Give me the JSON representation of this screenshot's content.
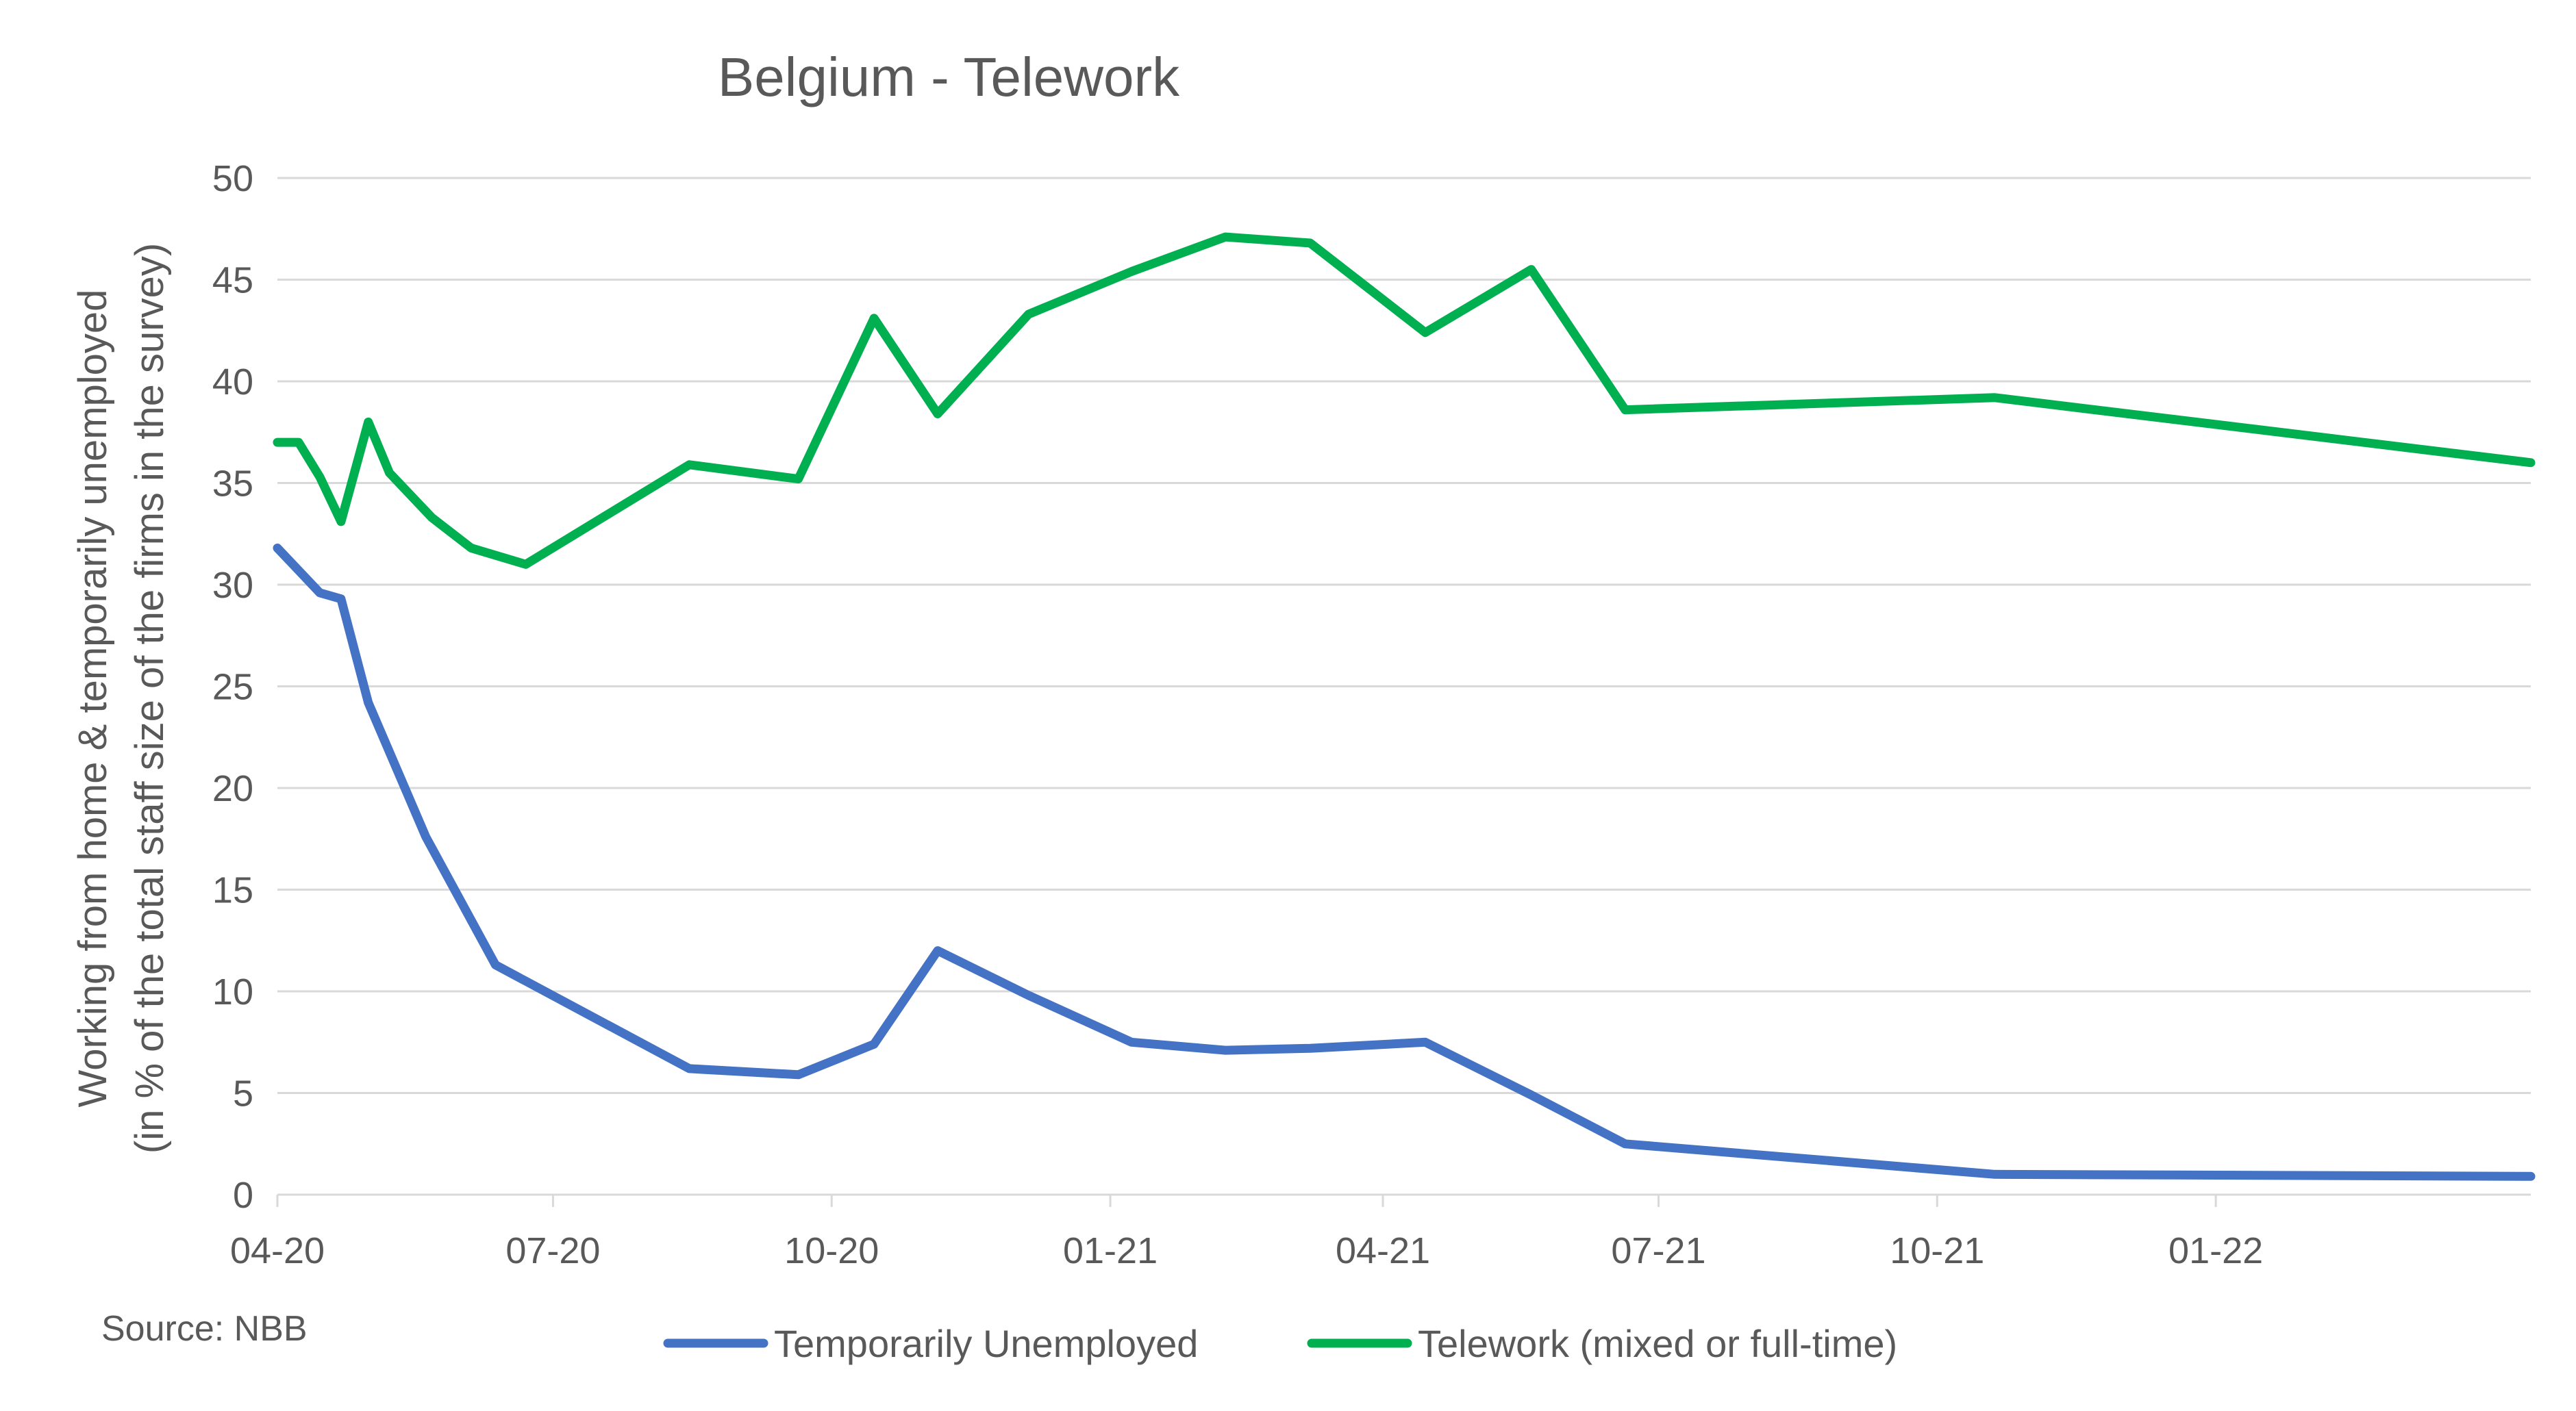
{
  "chart_data": {
    "type": "line",
    "title": "Belgium - Telework",
    "ylabel_line1": "Working from home & temporarily unemployed",
    "ylabel_line2": "(in % of the total staff size of the firms in the survey)",
    "source": "Source: NBB",
    "ylim": [
      0,
      50
    ],
    "y_ticks": [
      "0",
      "5",
      "10",
      "15",
      "20",
      "25",
      "30",
      "35",
      "40",
      "45",
      "50"
    ],
    "x_range": [
      "2020-04-01",
      "2022-04-15"
    ],
    "x_ticks": [
      {
        "date": "2020-04-01",
        "label": "04-20"
      },
      {
        "date": "2020-07-01",
        "label": "07-20"
      },
      {
        "date": "2020-10-01",
        "label": "10-20"
      },
      {
        "date": "2021-01-01",
        "label": "01-21"
      },
      {
        "date": "2021-04-01",
        "label": "04-21"
      },
      {
        "date": "2021-07-01",
        "label": "07-21"
      },
      {
        "date": "2021-10-01",
        "label": "10-21"
      },
      {
        "date": "2022-01-01",
        "label": "01-22"
      }
    ],
    "grid": true,
    "legend_position": "bottom",
    "series": [
      {
        "name": "Temporarily Unemployed",
        "color": "#4472c4",
        "points": [
          [
            "2020-04-01",
            31.8
          ],
          [
            "2020-04-08",
            30.7
          ],
          [
            "2020-04-15",
            29.6
          ],
          [
            "2020-04-22",
            29.3
          ],
          [
            "2020-05-01",
            24.2
          ],
          [
            "2020-05-20",
            17.6
          ],
          [
            "2020-06-12",
            11.3
          ],
          [
            "2020-08-15",
            6.2
          ],
          [
            "2020-09-20",
            5.9
          ],
          [
            "2020-10-15",
            7.4
          ],
          [
            "2020-11-05",
            12.0
          ],
          [
            "2020-12-05",
            9.8
          ],
          [
            "2021-01-08",
            7.5
          ],
          [
            "2021-02-08",
            7.1
          ],
          [
            "2021-03-08",
            7.2
          ],
          [
            "2021-04-15",
            7.5
          ],
          [
            "2021-05-20",
            4.9
          ],
          [
            "2021-06-20",
            2.5
          ],
          [
            "2021-10-20",
            1.0
          ],
          [
            "2022-04-15",
            0.9
          ]
        ]
      },
      {
        "name": "Telework (mixed or full-time)",
        "color": "#00b050",
        "points": [
          [
            "2020-04-01",
            37.0
          ],
          [
            "2020-04-08",
            37.0
          ],
          [
            "2020-04-15",
            35.3
          ],
          [
            "2020-04-22",
            33.1
          ],
          [
            "2020-05-01",
            38.0
          ],
          [
            "2020-05-08",
            35.5
          ],
          [
            "2020-05-22",
            33.3
          ],
          [
            "2020-06-04",
            31.8
          ],
          [
            "2020-06-22",
            31.0
          ],
          [
            "2020-08-15",
            35.9
          ],
          [
            "2020-09-20",
            35.2
          ],
          [
            "2020-10-15",
            43.1
          ],
          [
            "2020-11-05",
            38.4
          ],
          [
            "2020-12-05",
            43.3
          ],
          [
            "2021-01-08",
            45.4
          ],
          [
            "2021-02-08",
            47.1
          ],
          [
            "2021-03-08",
            46.8
          ],
          [
            "2021-04-15",
            42.4
          ],
          [
            "2021-05-20",
            45.5
          ],
          [
            "2021-06-20",
            38.6
          ],
          [
            "2021-10-20",
            39.2
          ],
          [
            "2022-04-15",
            36.0
          ]
        ]
      }
    ]
  }
}
